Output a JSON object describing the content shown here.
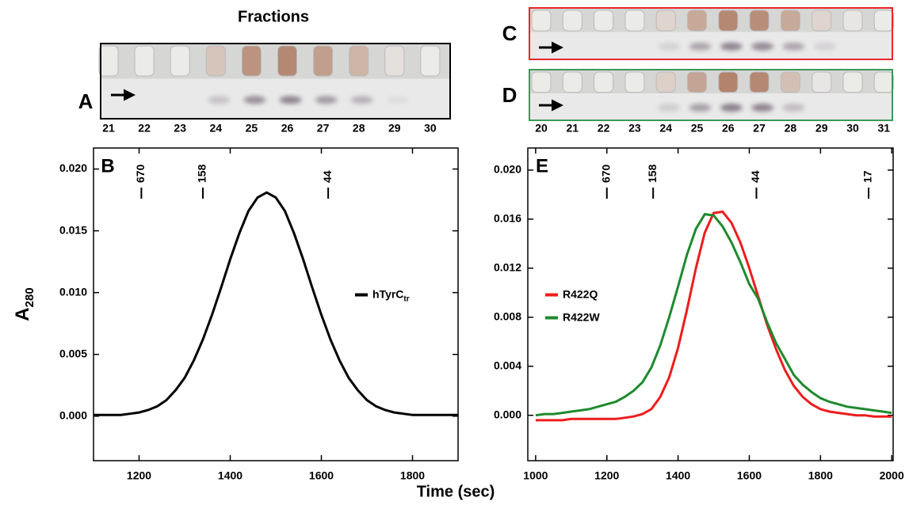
{
  "figure": {
    "title": "Fractions",
    "x_label": "Time (sec)",
    "left_gel": {
      "panel": "A",
      "lanes": [
        "21",
        "22",
        "23",
        "24",
        "25",
        "26",
        "27",
        "28",
        "29",
        "30"
      ]
    },
    "right_gels": {
      "panels": [
        "C",
        "D"
      ],
      "lanes": [
        "20",
        "21",
        "22",
        "23",
        "24",
        "25",
        "26",
        "27",
        "28",
        "29",
        "30",
        "31"
      ]
    }
  },
  "chart_data": [
    {
      "type": "line",
      "panel": "B",
      "y_label": "A",
      "y_label_sub": "280",
      "xlim": [
        1100,
        1900
      ],
      "xticks": [
        1200,
        1400,
        1600,
        1800
      ],
      "ylim": [
        -0.0036,
        0.0217
      ],
      "yticks": [
        {
          "value": 0,
          "label": "0.000"
        },
        {
          "value": 0.005,
          "label": "0.005"
        },
        {
          "value": 0.01,
          "label": "0.010"
        },
        {
          "value": 0.015,
          "label": "0.015"
        },
        {
          "value": 0.02,
          "label": "0.020"
        }
      ],
      "markers": [
        {
          "x": 1205,
          "label": "670"
        },
        {
          "x": 1340,
          "label": "158"
        },
        {
          "x": 1615,
          "label": "44"
        }
      ],
      "legend": "right",
      "x": [
        1100,
        1120,
        1140,
        1160,
        1180,
        1200,
        1220,
        1240,
        1260,
        1280,
        1300,
        1320,
        1340,
        1360,
        1380,
        1400,
        1420,
        1440,
        1460,
        1480,
        1500,
        1520,
        1540,
        1560,
        1580,
        1600,
        1620,
        1640,
        1660,
        1680,
        1700,
        1720,
        1740,
        1760,
        1780,
        1800,
        1820,
        1840,
        1860,
        1880,
        1900
      ],
      "series": [
        {
          "name": "hTyrC",
          "name_sub": "tr",
          "color": "#000000",
          "values": [
            0.0001,
            0.0001,
            0.0001,
            0.0001,
            0.0002,
            0.0003,
            0.0005,
            0.0008,
            0.0013,
            0.0021,
            0.0031,
            0.0045,
            0.0062,
            0.0082,
            0.0104,
            0.0127,
            0.0148,
            0.0166,
            0.0177,
            0.0181,
            0.0177,
            0.0166,
            0.0148,
            0.0127,
            0.0104,
            0.0082,
            0.0062,
            0.0045,
            0.0031,
            0.0021,
            0.0013,
            0.0008,
            0.0005,
            0.0003,
            0.0002,
            0.0001,
            0.0001,
            0.0001,
            0.0001,
            0.0001,
            0.0001
          ]
        }
      ]
    },
    {
      "type": "line",
      "panel": "E",
      "xlim": [
        978,
        2004
      ],
      "xticks": [
        1000,
        1200,
        1400,
        1600,
        1800,
        2000
      ],
      "ylim": [
        -0.0037,
        0.0218
      ],
      "yticks": [
        {
          "value": 0,
          "label": "0.000"
        },
        {
          "value": 0.004,
          "label": "0.004"
        },
        {
          "value": 0.008,
          "label": "0.008"
        },
        {
          "value": 0.012,
          "label": "0.012"
        },
        {
          "value": 0.016,
          "label": "0.016"
        },
        {
          "value": 0.02,
          "label": "0.020"
        }
      ],
      "markers": [
        {
          "x": 1200,
          "label": "670"
        },
        {
          "x": 1330,
          "label": "158"
        },
        {
          "x": 1620,
          "label": "44"
        },
        {
          "x": 1935,
          "label": "17"
        }
      ],
      "legend": "left",
      "x": [
        1000,
        1025,
        1050,
        1075,
        1100,
        1125,
        1150,
        1175,
        1200,
        1225,
        1250,
        1275,
        1300,
        1325,
        1350,
        1375,
        1400,
        1425,
        1450,
        1475,
        1500,
        1525,
        1550,
        1575,
        1600,
        1625,
        1650,
        1675,
        1700,
        1725,
        1750,
        1775,
        1800,
        1825,
        1850,
        1875,
        1900,
        1925,
        1950,
        1975,
        2000
      ],
      "series": [
        {
          "name": "R422Q",
          "color": "#ee1c1c",
          "values": [
            -0.0004,
            -0.0004,
            -0.0004,
            -0.0004,
            -0.0003,
            -0.0003,
            -0.0003,
            -0.0003,
            -0.0003,
            -0.0003,
            -0.0002,
            -0.0001,
            0.0001,
            0.0005,
            0.0015,
            0.0031,
            0.0055,
            0.0086,
            0.012,
            0.0149,
            0.0165,
            0.0166,
            0.0157,
            0.0141,
            0.012,
            0.0097,
            0.0074,
            0.0054,
            0.0037,
            0.0024,
            0.0015,
            0.0009,
            0.0005,
            0.0003,
            0.0002,
            0.0001,
            0,
            0,
            -0.0001,
            -0.0001,
            -0.0001
          ]
        },
        {
          "name": "R422W",
          "color": "#1e8a2e",
          "values": [
            0,
            0.0001,
            0.0001,
            0.0002,
            0.0003,
            0.0004,
            0.0005,
            0.0007,
            0.0009,
            0.0011,
            0.0015,
            0.002,
            0.0027,
            0.0039,
            0.0057,
            0.008,
            0.0105,
            0.0131,
            0.0152,
            0.0164,
            0.0163,
            0.0154,
            0.0141,
            0.0125,
            0.0107,
            0.0095,
            0.0076,
            0.0059,
            0.0046,
            0.0033,
            0.0025,
            0.0019,
            0.0014,
            0.0011,
            0.0009,
            0.0007,
            0.0006,
            0.0005,
            0.0004,
            0.0003,
            0.0002
          ]
        }
      ]
    }
  ]
}
